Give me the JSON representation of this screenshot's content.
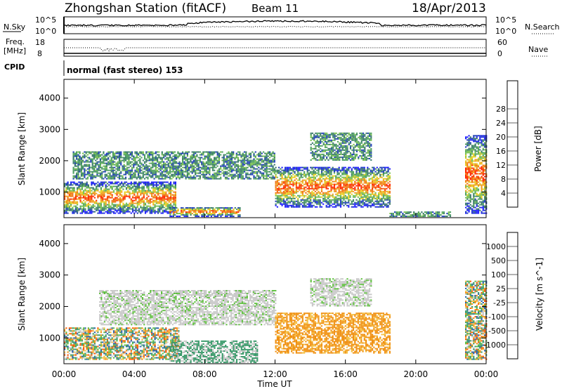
{
  "header": {
    "station": "Zhongshan Station (fitACF)",
    "beam": "Beam 11",
    "date": "18/Apr/2013"
  },
  "panels": {
    "nsky": {
      "label": "N.Sky",
      "tick_top": "10^5",
      "tick_bottom": "10^0"
    },
    "nsearch": {
      "label": "N.Search",
      "tick_top": "10^5",
      "tick_bottom": "10^0"
    },
    "freq": {
      "label_line1": "Freq.",
      "label_line2": "[MHz]",
      "tick_top": "18",
      "tick_bottom": "8"
    },
    "nave": {
      "label": "Nave",
      "tick_top": "60",
      "tick_bottom": "0"
    },
    "cpid": {
      "label": "CPID",
      "text": "normal (fast stereo) 153"
    }
  },
  "colors": {
    "power": [
      "#1e1eff",
      "#2040b8",
      "#3a7a6a",
      "#4ea060",
      "#78c050",
      "#e8d020",
      "#f0a020",
      "#f07010",
      "#ff2a00"
    ],
    "velocity": [
      "#ff1a00",
      "#ff5a00",
      "#f09010",
      "#f4bf40",
      "#c8c8c8",
      "#60c040",
      "#3a9a6a",
      "#2a60a8",
      "#1818c8"
    ]
  },
  "chart_data": [
    {
      "type": "heatmap",
      "title": "",
      "xlabel": "Time UT",
      "ylabel": "Slant Range [km]",
      "x_ticks": [
        "00:00",
        "04:00",
        "08:00",
        "12:00",
        "16:00",
        "20:00",
        "00:00"
      ],
      "y_ticks": [
        "1000",
        "2000",
        "3000",
        "4000"
      ],
      "ylim": [
        180,
        4600
      ],
      "colorbar": {
        "label": "Power [dB]",
        "ticks": [
          "4",
          "8",
          "12",
          "16",
          "20",
          "24",
          "28"
        ],
        "range": [
          0,
          32
        ]
      },
      "regions": [
        {
          "t": [
            0.0,
            6.3
          ],
          "r": [
            300,
            1300
          ],
          "level": "strong"
        },
        {
          "t": [
            0.5,
            12.0
          ],
          "r": [
            1400,
            2300
          ],
          "level": "weak"
        },
        {
          "t": [
            6.0,
            10.0
          ],
          "r": [
            200,
            500
          ],
          "level": "strong"
        },
        {
          "t": [
            12.0,
            18.5
          ],
          "r": [
            500,
            1800
          ],
          "level": "strong"
        },
        {
          "t": [
            14.0,
            17.5
          ],
          "r": [
            2000,
            2900
          ],
          "level": "weak"
        },
        {
          "t": [
            18.5,
            22.0
          ],
          "r": [
            200,
            350
          ],
          "level": "weak"
        },
        {
          "t": [
            22.8,
            24.0
          ],
          "r": [
            300,
            2800
          ],
          "level": "strong"
        }
      ]
    },
    {
      "type": "heatmap",
      "title": "",
      "xlabel": "Time UT",
      "ylabel": "Slant Range [km]",
      "x_ticks": [
        "00:00",
        "04:00",
        "08:00",
        "12:00",
        "16:00",
        "20:00",
        "00:00"
      ],
      "y_ticks": [
        "1000",
        "2000",
        "3000",
        "4000"
      ],
      "ylim": [
        180,
        4600
      ],
      "colorbar": {
        "label": "Velocity [m s^-1]",
        "ticks": [
          "-1000",
          "-500",
          "-100",
          "-25",
          "25",
          "100",
          "500",
          "1000"
        ],
        "range": [
          -1200,
          1200
        ]
      },
      "regions": [
        {
          "t": [
            0.0,
            6.5
          ],
          "r": [
            300,
            1300
          ],
          "level": "mixed"
        },
        {
          "t": [
            2.0,
            12.0
          ],
          "r": [
            1400,
            2500
          ],
          "level": "grey"
        },
        {
          "t": [
            6.0,
            11.0
          ],
          "r": [
            200,
            900
          ],
          "level": "green"
        },
        {
          "t": [
            12.0,
            18.5
          ],
          "r": [
            500,
            1800
          ],
          "level": "orange"
        },
        {
          "t": [
            14.0,
            17.5
          ],
          "r": [
            2000,
            2900
          ],
          "level": "grey"
        },
        {
          "t": [
            22.8,
            24.0
          ],
          "r": [
            300,
            2800
          ],
          "level": "mixed"
        }
      ]
    }
  ]
}
